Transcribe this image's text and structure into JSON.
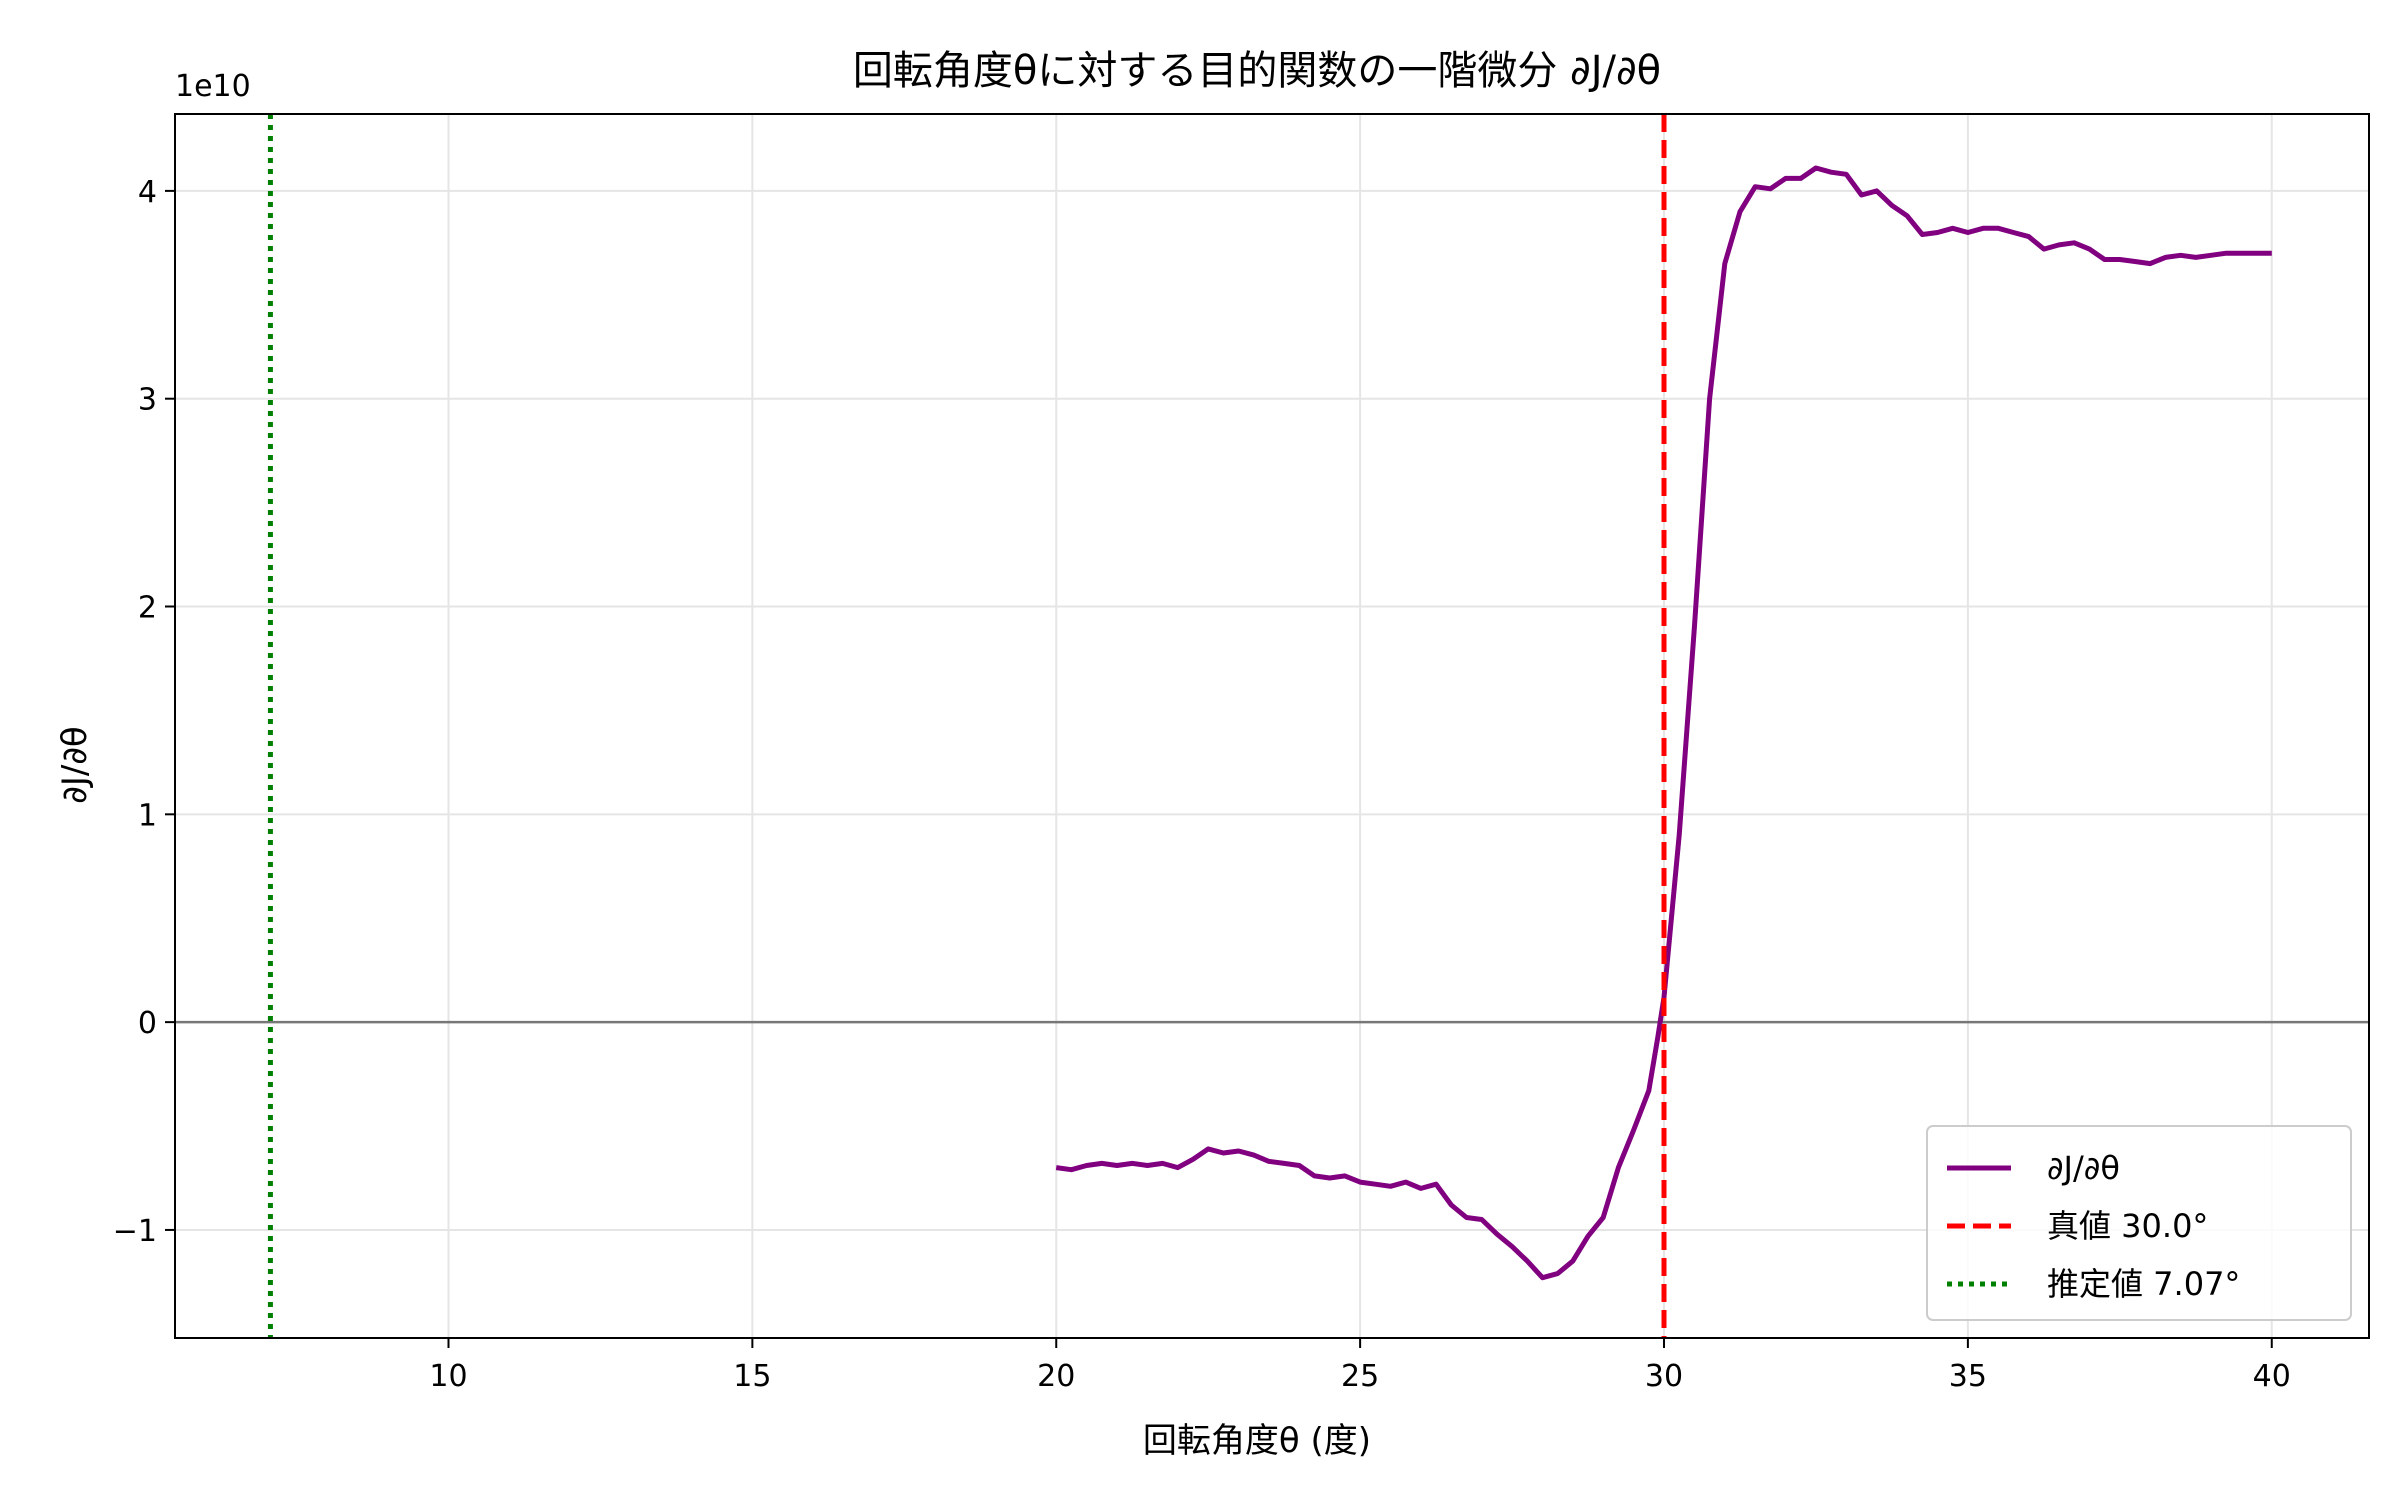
{
  "chart_data": {
    "type": "line",
    "title": "回転角度θに対する目的関数の一階微分 ∂J/∂θ",
    "xlabel": "回転角度θ (度)",
    "ylabel": "∂J/∂θ",
    "y_offset_label": "1e10",
    "xlim": [
      5.5,
      41.6
    ],
    "ylim": [
      -15200000000,
      43700000000
    ],
    "xticks": [
      10,
      15,
      20,
      25,
      30,
      35,
      40
    ],
    "yticks": [
      -10000000000,
      0,
      10000000000,
      20000000000,
      30000000000,
      40000000000
    ],
    "ytick_labels": [
      "−1",
      "0",
      "1",
      "2",
      "3",
      "4"
    ],
    "grid": true,
    "legend_position": "lower-right",
    "zero_line": {
      "y": 0,
      "color": "#777777"
    },
    "series": [
      {
        "name": "∂J/∂θ",
        "color": "#800080",
        "style": "solid",
        "x": [
          20.0,
          20.25,
          20.5,
          20.75,
          21.0,
          21.25,
          21.5,
          21.75,
          22.0,
          22.25,
          22.5,
          22.75,
          23.0,
          23.25,
          23.5,
          23.75,
          24.0,
          24.25,
          24.5,
          24.75,
          25.0,
          25.25,
          25.5,
          25.75,
          26.0,
          26.25,
          26.5,
          26.75,
          27.0,
          27.25,
          27.5,
          27.75,
          28.0,
          28.25,
          28.5,
          28.75,
          29.0,
          29.25,
          29.5,
          29.75,
          29.9,
          30.0,
          30.25,
          30.5,
          30.75,
          31.0,
          31.25,
          31.5,
          31.75,
          32.0,
          32.25,
          32.5,
          32.75,
          33.0,
          33.25,
          33.5,
          33.75,
          34.0,
          34.25,
          34.5,
          34.75,
          35.0,
          35.25,
          35.5,
          35.75,
          36.0,
          36.25,
          36.5,
          36.75,
          37.0,
          37.25,
          37.5,
          37.75,
          38.0,
          38.25,
          38.5,
          38.75,
          39.0,
          39.25,
          39.5,
          39.75,
          40.0
        ],
        "y": [
          -7000000000,
          -7100000000,
          -6900000000,
          -6800000000,
          -6900000000,
          -6800000000,
          -6900000000,
          -6800000000,
          -7000000000,
          -6600000000,
          -6100000000,
          -6300000000,
          -6200000000,
          -6400000000,
          -6700000000,
          -6800000000,
          -6900000000,
          -7400000000,
          -7500000000,
          -7400000000,
          -7700000000,
          -7800000000,
          -7900000000,
          -7700000000,
          -8000000000,
          -7800000000,
          -8800000000,
          -9400000000,
          -9500000000,
          -10200000000,
          -10800000000,
          -11500000000,
          -12300000000,
          -12100000000,
          -11500000000,
          -10300000000,
          -9400000000,
          -7000000000,
          -5200000000,
          -3300000000,
          -700000000,
          1200000000,
          9000000000,
          19000000000,
          30000000000,
          36500000000,
          39000000000,
          40200000000,
          40100000000,
          40600000000,
          40600000000,
          41100000000,
          40900000000,
          40800000000,
          39800000000,
          40000000000,
          39300000000,
          38800000000,
          37900000000,
          38000000000,
          38200000000,
          38000000000,
          38200000000,
          38200000000,
          38000000000,
          37800000000,
          37200000000,
          37400000000,
          37500000000,
          37200000000,
          36700000000,
          36700000000,
          36600000000,
          36500000000,
          36800000000,
          36900000000,
          36800000000,
          36900000000,
          37000000000,
          37000000000,
          37000000000,
          37000000000
        ]
      },
      {
        "name": "真値 30.0°",
        "color": "#ff0000",
        "style": "dashed",
        "vertical_x": 30.0
      },
      {
        "name": "推定値 7.07°",
        "color": "#008000",
        "style": "dotted",
        "vertical_x": 7.07
      }
    ]
  }
}
